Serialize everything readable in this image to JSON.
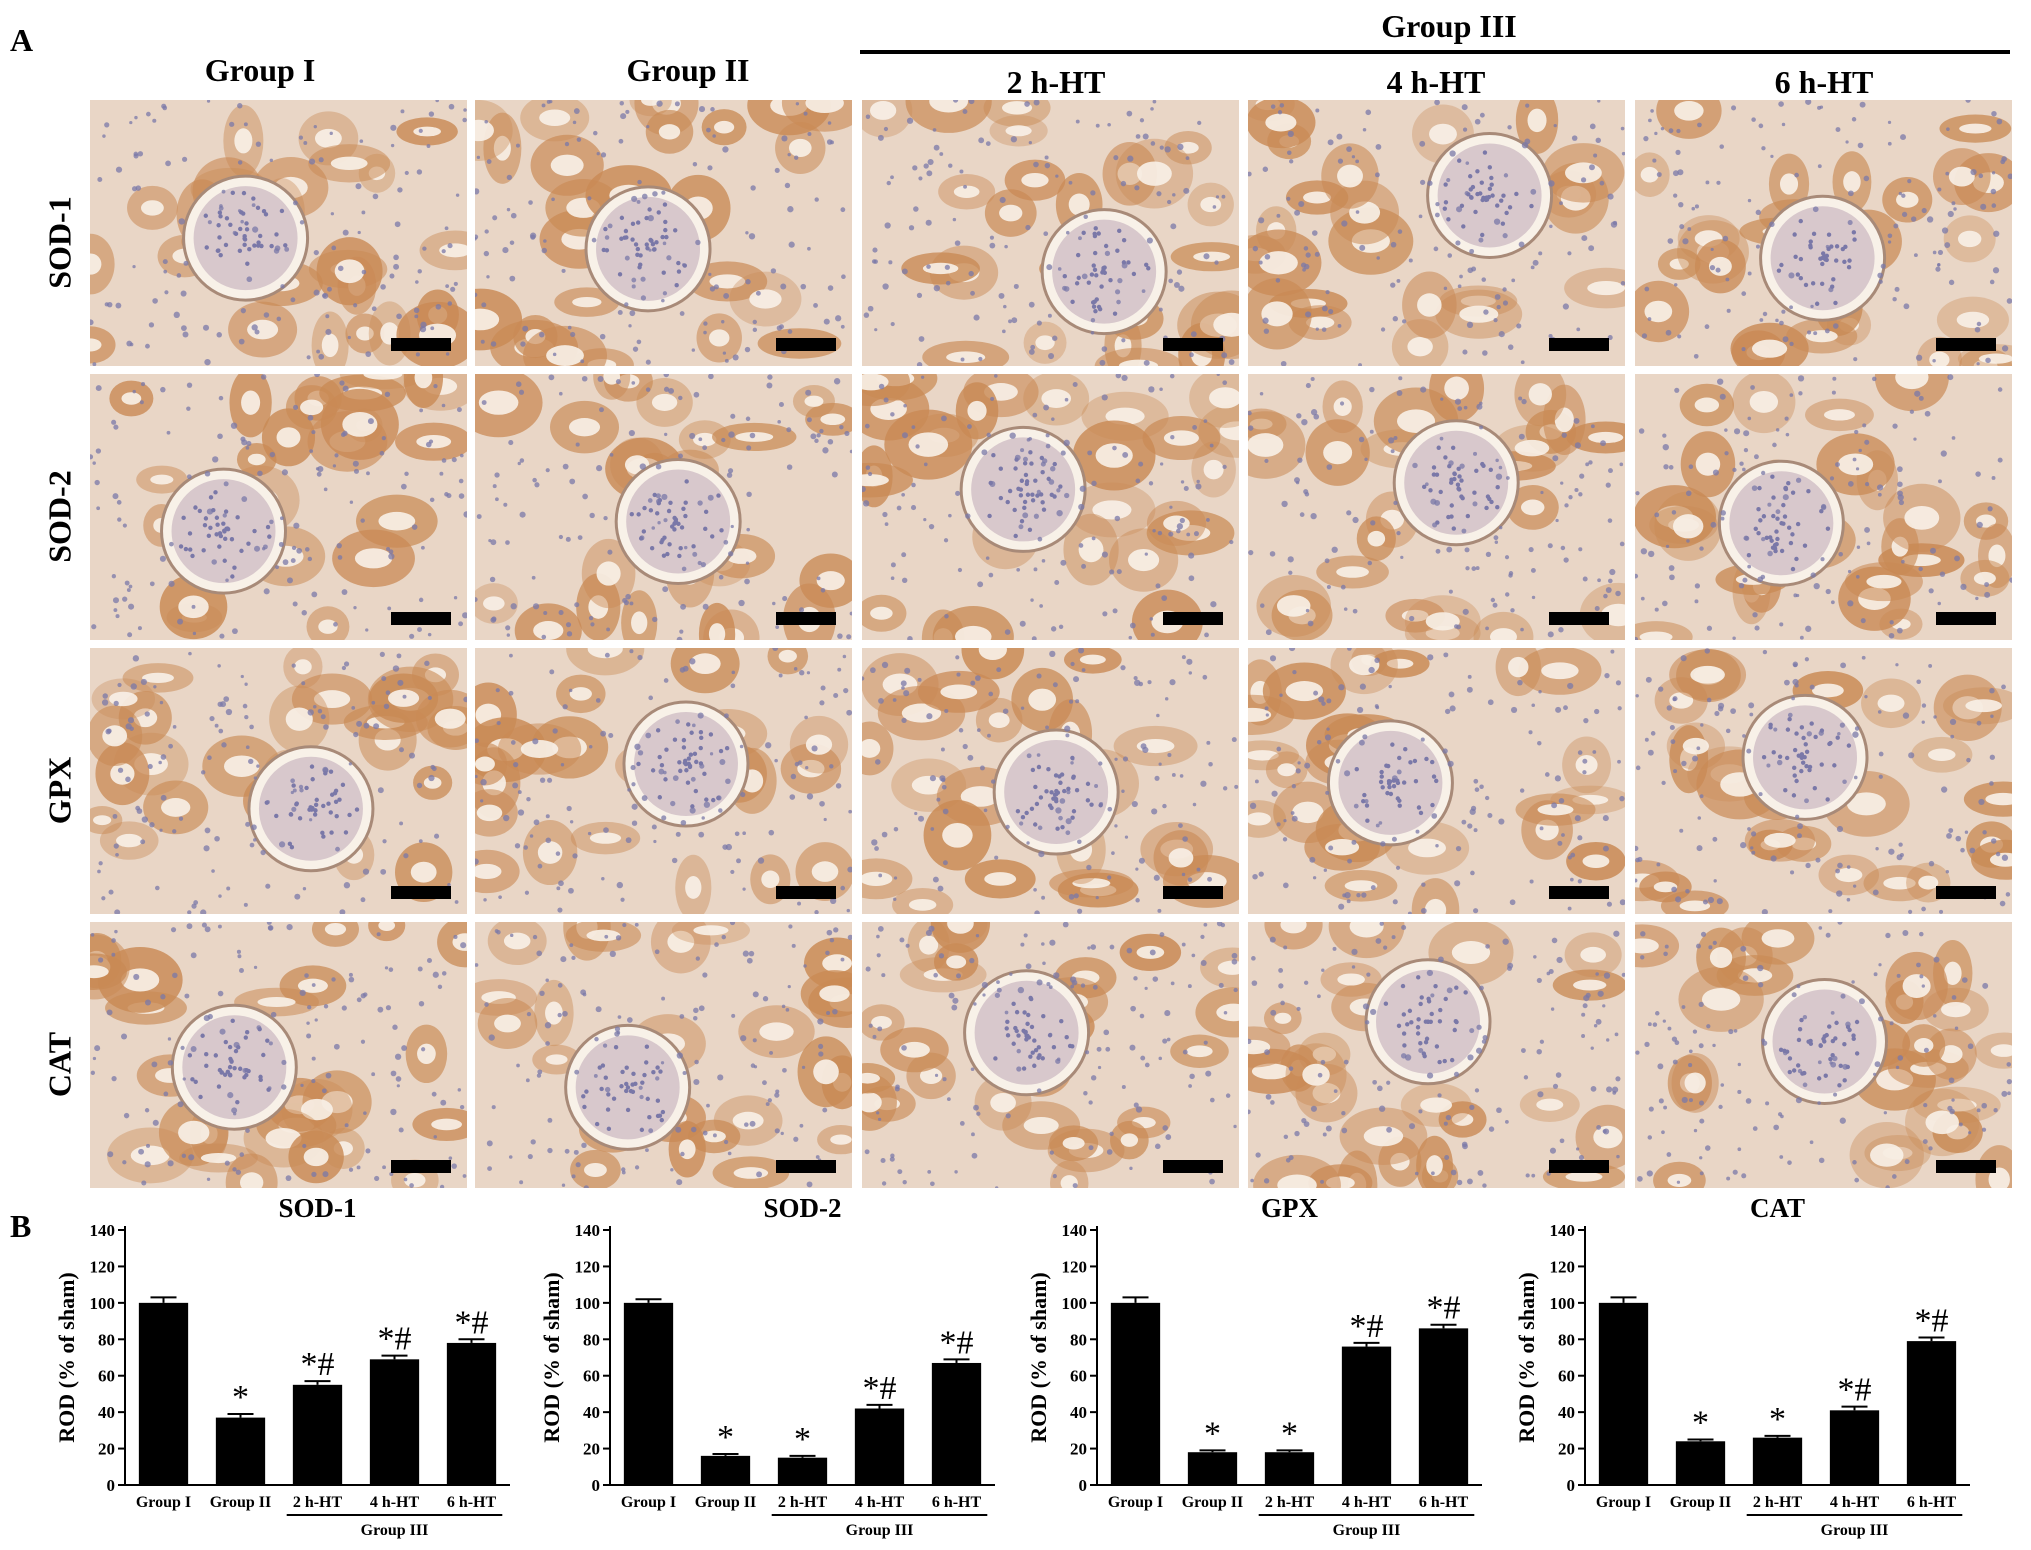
{
  "panel_a": {
    "letter": "A",
    "column_headers": [
      "Group I",
      "Group II",
      "2 h-HT",
      "4 h-HT",
      "6 h-HT"
    ],
    "group_header": "Group III",
    "row_headers": [
      "SOD-1",
      "SOD-2",
      "GPX",
      "CAT"
    ],
    "stain_colors": {
      "background": "#e9d6c6",
      "tubule": "#c98a55",
      "nucleus": "#7a78a8",
      "lumen": "#f8f1e8"
    }
  },
  "panel_b": {
    "letter": "B"
  },
  "chart_data": [
    {
      "type": "bar",
      "title": "SOD-1",
      "ylabel": "ROD (% of sham)",
      "xlabel": "",
      "ylim": [
        0,
        140
      ],
      "yticks": [
        0,
        20,
        40,
        60,
        80,
        100,
        120,
        140
      ],
      "categories": [
        "Group I",
        "Group II",
        "2 h-HT",
        "4 h-HT",
        "6 h-HT"
      ],
      "group_label": "Group III",
      "values": [
        100,
        37,
        55,
        69,
        78
      ],
      "errors": [
        3,
        2,
        2,
        2,
        2
      ],
      "annotations": [
        "",
        "*",
        "*#",
        "*#",
        "*#"
      ]
    },
    {
      "type": "bar",
      "title": "SOD-2",
      "ylabel": "ROD (% of sham)",
      "xlabel": "",
      "ylim": [
        0,
        140
      ],
      "yticks": [
        0,
        20,
        40,
        60,
        80,
        100,
        120,
        140
      ],
      "categories": [
        "Group I",
        "Group II",
        "2 h-HT",
        "4 h-HT",
        "6 h-HT"
      ],
      "group_label": "Group III",
      "values": [
        100,
        16,
        15,
        42,
        67
      ],
      "errors": [
        2,
        1,
        1,
        2,
        2
      ],
      "annotations": [
        "",
        "*",
        "*",
        "*#",
        "*#"
      ]
    },
    {
      "type": "bar",
      "title": "GPX",
      "ylabel": "ROD (% of sham)",
      "xlabel": "",
      "ylim": [
        0,
        140
      ],
      "yticks": [
        0,
        20,
        40,
        60,
        80,
        100,
        120,
        140
      ],
      "categories": [
        "Group I",
        "Group II",
        "2 h-HT",
        "4 h-HT",
        "6 h-HT"
      ],
      "group_label": "Group III",
      "values": [
        100,
        18,
        18,
        76,
        86
      ],
      "errors": [
        3,
        1,
        1,
        2,
        2
      ],
      "annotations": [
        "",
        "*",
        "*",
        "*#",
        "*#"
      ]
    },
    {
      "type": "bar",
      "title": "CAT",
      "ylabel": "ROD (% of sham)",
      "xlabel": "",
      "ylim": [
        0,
        140
      ],
      "yticks": [
        0,
        20,
        40,
        60,
        80,
        100,
        120,
        140
      ],
      "categories": [
        "Group I",
        "Group II",
        "2 h-HT",
        "4 h-HT",
        "6 h-HT"
      ],
      "group_label": "Group III",
      "values": [
        100,
        24,
        26,
        41,
        79
      ],
      "errors": [
        3,
        1,
        1,
        2,
        2
      ],
      "annotations": [
        "",
        "*",
        "*",
        "*#",
        "*#"
      ]
    }
  ]
}
